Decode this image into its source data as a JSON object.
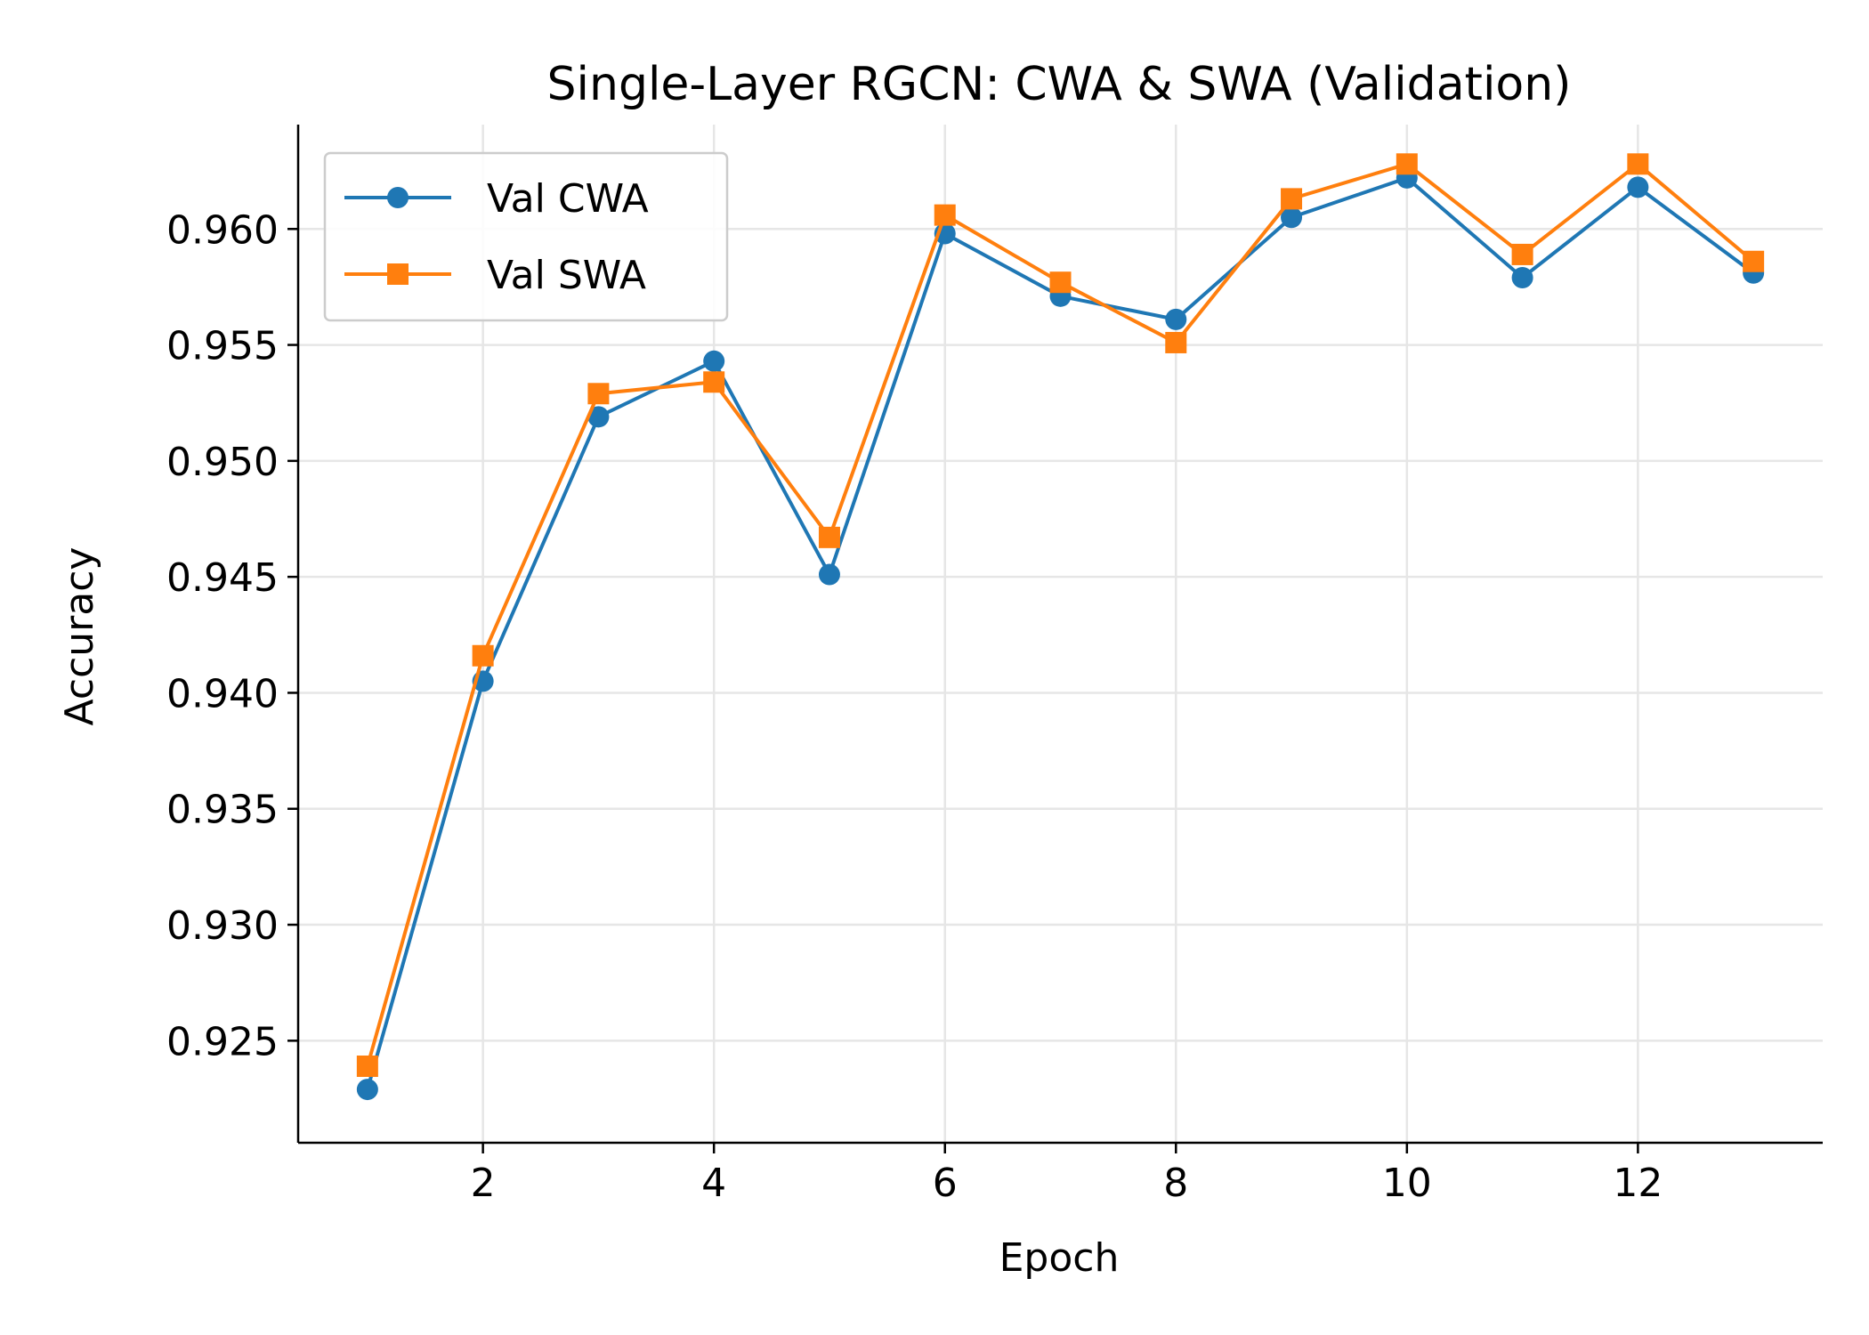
{
  "chart_data": {
    "type": "line",
    "title": "Single-Layer RGCN: CWA & SWA (Validation)",
    "xlabel": "Epoch",
    "ylabel": "Accuracy",
    "xlim": [
      0.4,
      13.6
    ],
    "ylim": [
      0.9206,
      0.9645
    ],
    "xticks": [
      2,
      4,
      6,
      8,
      10,
      12
    ],
    "yticks": [
      0.925,
      0.93,
      0.935,
      0.94,
      0.945,
      0.95,
      0.955,
      0.96
    ],
    "ytick_labels": [
      "0.925",
      "0.930",
      "0.935",
      "0.940",
      "0.945",
      "0.950",
      "0.955",
      "0.960"
    ],
    "grid": true,
    "legend_position": "top-left",
    "x": [
      1,
      2,
      3,
      4,
      5,
      6,
      7,
      8,
      9,
      10,
      11,
      12,
      13
    ],
    "series": [
      {
        "name": "Val CWA",
        "color": "#1f77b4",
        "marker": "circle",
        "values": [
          0.9229,
          0.9405,
          0.9519,
          0.9543,
          0.9451,
          0.9598,
          0.9571,
          0.9561,
          0.9605,
          0.9622,
          0.9579,
          0.9618,
          0.9581
        ]
      },
      {
        "name": "Val SWA",
        "color": "#ff7f0e",
        "marker": "square",
        "values": [
          0.9239,
          0.9416,
          0.9529,
          0.9534,
          0.9467,
          0.9606,
          0.9577,
          0.9551,
          0.9613,
          0.9628,
          0.9589,
          0.9628,
          0.9586
        ]
      }
    ]
  }
}
